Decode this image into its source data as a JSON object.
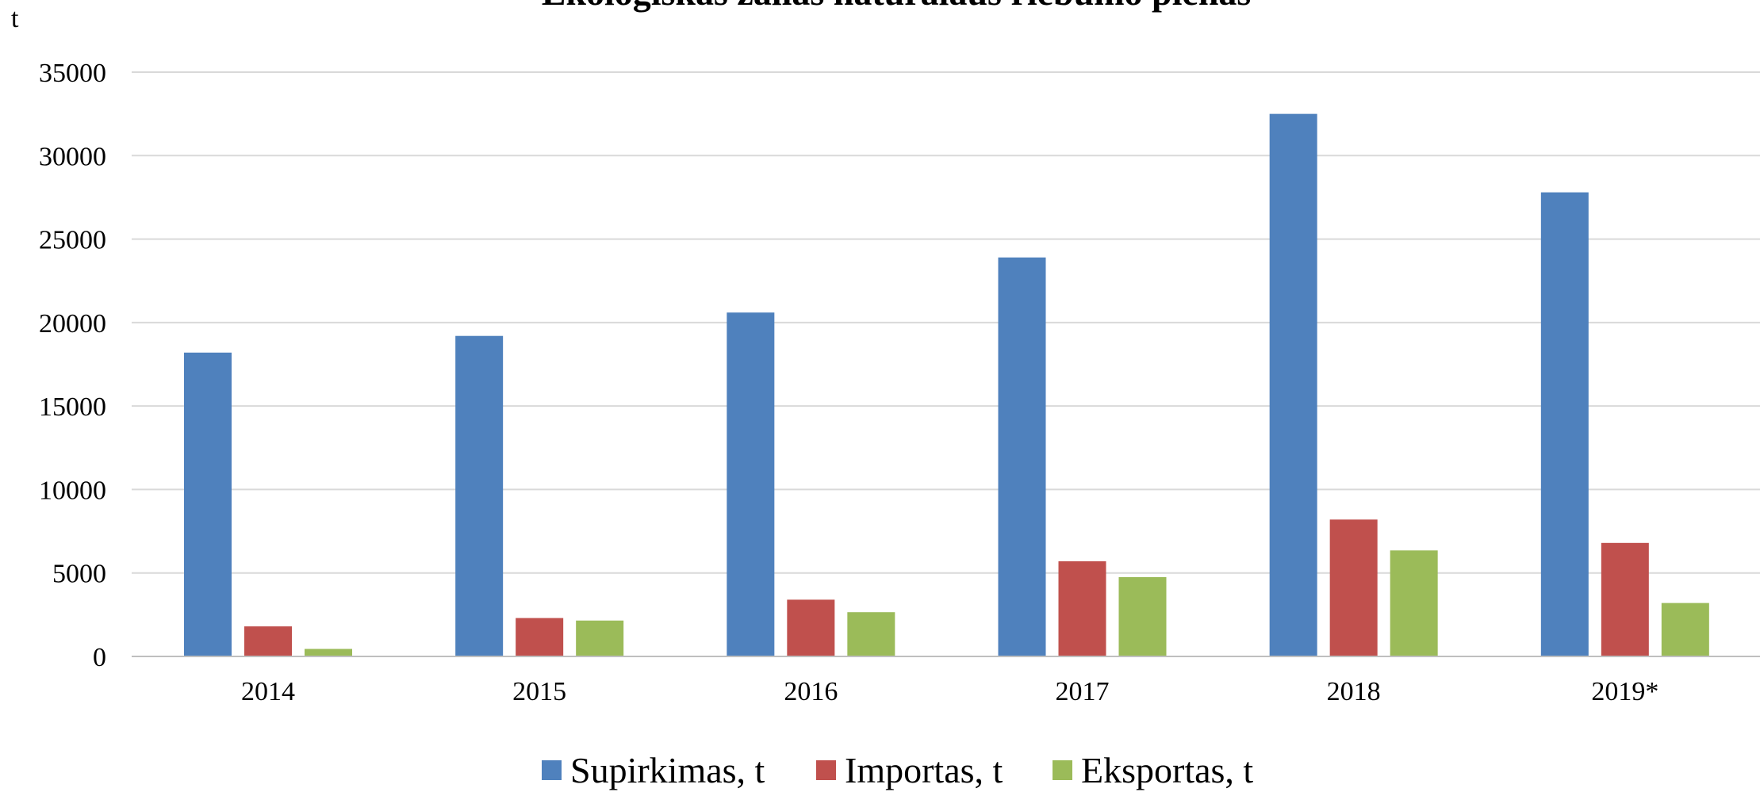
{
  "chart_data": {
    "type": "bar",
    "title": "Ekologiškas žalias natūralaus riebumo pienas",
    "ylabel": "t",
    "xlabel": "",
    "categories": [
      "2014",
      "2015",
      "2016",
      "2017",
      "2018",
      "2019*"
    ],
    "series": [
      {
        "name": "Supirkimas, t",
        "color": "#4F81BD",
        "values": [
          18200,
          19200,
          20600,
          23900,
          32500,
          27800
        ]
      },
      {
        "name": "Importas, t",
        "color": "#C0504D",
        "values": [
          1800,
          2300,
          3400,
          5700,
          8200,
          6800
        ]
      },
      {
        "name": "Eksportas, t",
        "color": "#9BBB59",
        "values": [
          450,
          2150,
          2650,
          4750,
          6350,
          3200
        ]
      }
    ],
    "ylim": [
      0,
      35000
    ],
    "yticks": [
      "0",
      "5000",
      "10000",
      "15000",
      "20000",
      "25000",
      "30000",
      "35000"
    ],
    "grid": true,
    "legend": "bottom"
  }
}
